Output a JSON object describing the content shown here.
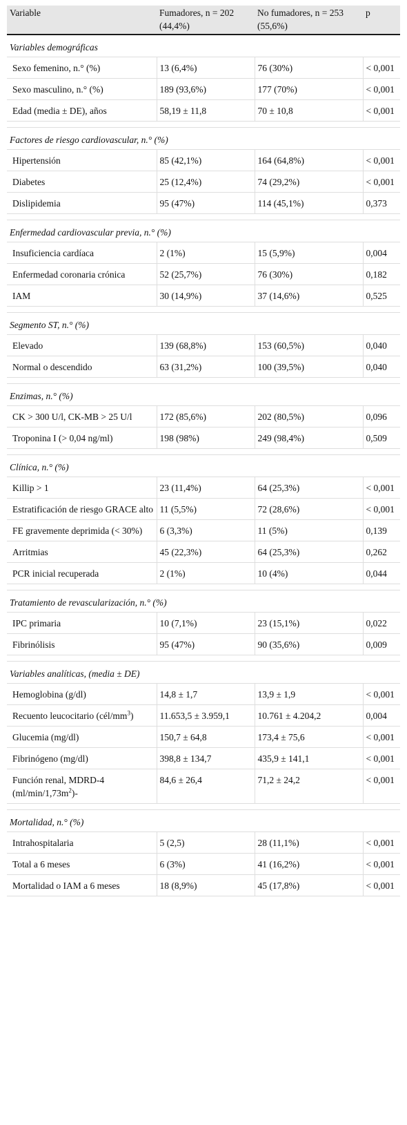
{
  "table": {
    "headers": [
      "Variable",
      "Fumadores, n = 202 (44,4%)",
      "No fumadores, n = 253 (55,6%)",
      "p"
    ],
    "sections": [
      {
        "title": "Variables demográficas",
        "rows": [
          {
            "label": "Sexo femenino, n.° (%)",
            "fum": "13 (6,4%)",
            "nofum": "76 (30%)",
            "p": "< 0,001"
          },
          {
            "label": "Sexo masculino, n.° (%)",
            "fum": "189 (93,6%)",
            "nofum": "177 (70%)",
            "p": "< 0,001"
          },
          {
            "label": "Edad (media ± DE), años",
            "fum": "58,19 ± 11,8",
            "nofum": "70 ± 10,8",
            "p": "< 0,001"
          }
        ]
      },
      {
        "title": "Factores de riesgo cardiovascular, n.° (%)",
        "rows": [
          {
            "label": "Hipertensión",
            "fum": "85 (42,1%)",
            "nofum": "164 (64,8%)",
            "p": "< 0,001"
          },
          {
            "label": "Diabetes",
            "fum": "25 (12,4%)",
            "nofum": "74 (29,2%)",
            "p": "< 0,001"
          },
          {
            "label": "Dislipidemia",
            "fum": "95 (47%)",
            "nofum": "114 (45,1%)",
            "p": "0,373"
          }
        ]
      },
      {
        "title": "Enfermedad cardiovascular previa, n.° (%)",
        "rows": [
          {
            "label": "Insuficiencia cardíaca",
            "fum": "2 (1%)",
            "nofum": "15 (5,9%)",
            "p": "0,004"
          },
          {
            "label": "Enfermedad coronaria crónica",
            "fum": "52 (25,7%)",
            "nofum": "76 (30%)",
            "p": "0,182"
          },
          {
            "label": "IAM",
            "fum": "30 (14,9%)",
            "nofum": "37 (14,6%)",
            "p": "0,525"
          }
        ]
      },
      {
        "title": "Segmento ST, n.° (%)",
        "rows": [
          {
            "label": "Elevado",
            "fum": "139 (68,8%)",
            "nofum": "153 (60,5%)",
            "p": "0,040"
          },
          {
            "label": "Normal o descendido",
            "fum": "63 (31,2%)",
            "nofum": "100 (39,5%)",
            "p": "0,040"
          }
        ]
      },
      {
        "title": "Enzimas, n.° (%)",
        "rows": [
          {
            "label": "CK > 300 U/l, CK-MB > 25 U/l",
            "fum": "172 (85,6%)",
            "nofum": "202 (80,5%)",
            "p": "0,096"
          },
          {
            "label": "Troponina I (> 0,04 ng/ml)",
            "fum": "198 (98%)",
            "nofum": "249 (98,4%)",
            "p": "0,509"
          }
        ]
      },
      {
        "title": "Clínica, n.° (%)",
        "rows": [
          {
            "label": "Killip > 1",
            "fum": "23 (11,4%)",
            "nofum": "64 (25,3%)",
            "p": "< 0,001"
          },
          {
            "label": "Estratificación de riesgo GRACE alto",
            "fum": "11 (5,5%)",
            "nofum": "72 (28,6%)",
            "p": "< 0,001"
          },
          {
            "label": "FE gravemente deprimida (< 30%)",
            "fum": "6 (3,3%)",
            "nofum": "11 (5%)",
            "p": "0,139"
          },
          {
            "label": "Arritmias",
            "fum": "45 (22,3%)",
            "nofum": "64 (25,3%)",
            "p": "0,262"
          },
          {
            "label": "PCR inicial recuperada",
            "fum": "2 (1%)",
            "nofum": "10 (4%)",
            "p": "0,044"
          }
        ]
      },
      {
        "title": "Tratamiento de revascularización, n.° (%)",
        "rows": [
          {
            "label": "IPC primaria",
            "fum": "10 (7,1%)",
            "nofum": "23 (15,1%)",
            "p": "0,022"
          },
          {
            "label": "Fibrinólisis",
            "fum": "95 (47%)",
            "nofum": "90 (35,6%)",
            "p": "0,009"
          }
        ]
      },
      {
        "title": "Variables analíticas, (media ± DE)",
        "rows": [
          {
            "label": "Hemoglobina (g/dl)",
            "fum": "14,8 ± 1,7",
            "nofum": "13,9 ± 1,9",
            "p": "< 0,001"
          },
          {
            "label": "Recuento leucocitario (cél/mm",
            "label_sup": "3",
            "label_tail": ")",
            "fum": "11.653,5 ± 3.959,1",
            "nofum": "10.761 ± 4.204,2",
            "p": "0,004"
          },
          {
            "label": "Glucemia (mg/dl)",
            "fum": "150,7 ± 64,8",
            "nofum": "173,4 ± 75,6",
            "p": "< 0,001"
          },
          {
            "label": "Fibrinógeno (mg/dl)",
            "fum": "398,8 ± 134,7",
            "nofum": "435,9 ± 141,1",
            "p": "< 0,001"
          },
          {
            "label": "Función renal, MDRD-4 (ml/min/1,73m",
            "label_sup": "2",
            "label_tail": ")-",
            "fum": "84,6 ± 26,4",
            "nofum": "71,2 ± 24,2",
            "p": "< 0,001"
          }
        ]
      },
      {
        "title": "Mortalidad, n.° (%)",
        "rows": [
          {
            "label": "Intrahospitalaria",
            "fum": "5 (2,5)",
            "nofum": "28 (11,1%)",
            "p": "< 0,001"
          },
          {
            "label": "Total a 6 meses",
            "fum": "6 (3%)",
            "nofum": "41 (16,2%)",
            "p": "< 0,001"
          },
          {
            "label": "Mortalidad o IAM a 6 meses",
            "fum": "18 (8,9%)",
            "nofum": "45 (17,8%)",
            "p": "< 0,001"
          }
        ]
      }
    ]
  }
}
